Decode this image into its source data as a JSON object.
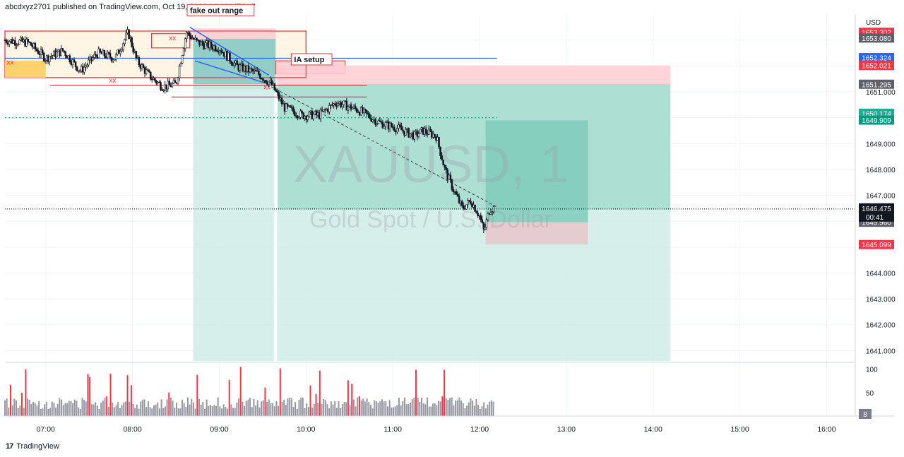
{
  "header": {
    "published": "abcdxyz2701 published on TradingView.com, Oct 19, 2022 12:10 UTC+7"
  },
  "footer": {
    "logo": "17",
    "brand": "TradingView"
  },
  "watermark": {
    "symbol": "XAUUSD, 1",
    "name": "Gold Spot / U.S. Dollar"
  },
  "chart_data": {
    "type": "candlestick",
    "symbol": "XAUUSD",
    "interval": "1",
    "currency": "USD",
    "ylim": [
      1640.6,
      1653.95
    ],
    "price_ticks": [
      "1651.000",
      "1649.000",
      "1648.000",
      "1647.000",
      "1644.000",
      "1643.000",
      "1642.000",
      "1641.000"
    ],
    "time_ticks": [
      {
        "label": "07:00",
        "t": 7.0
      },
      {
        "label": "08:00",
        "t": 8.0
      },
      {
        "label": "09:00",
        "t": 9.0
      },
      {
        "label": "10:00",
        "t": 10.0
      },
      {
        "label": "11:00",
        "t": 11.0
      },
      {
        "label": "12:00",
        "t": 12.0
      },
      {
        "label": "13:00",
        "t": 13.0
      },
      {
        "label": "14:00",
        "t": 14.0
      },
      {
        "label": "15:00",
        "t": 15.0
      },
      {
        "label": "16:00",
        "t": 16.0
      }
    ],
    "xlim": [
      6.53,
      16.33
    ],
    "price_labels": [
      {
        "value": 1653.302,
        "text": "1653.302",
        "bg": "#f23645",
        "fg": "#ffffff"
      },
      {
        "value": 1653.08,
        "text": "1653.080",
        "bg": "#5d606b",
        "fg": "#ffffff"
      },
      {
        "value": 1652.324,
        "text": "1652.324",
        "bg": "#2962ff",
        "fg": "#ffffff"
      },
      {
        "value": 1652.021,
        "text": "1652.021",
        "bg": "#f23645",
        "fg": "#ffffff"
      },
      {
        "value": 1651.295,
        "text": "1651.295",
        "bg": "#5d606b",
        "fg": "#ffffff"
      },
      {
        "value": 1650.174,
        "text": "1650.174",
        "bg": "#22ab94",
        "fg": "#ffffff"
      },
      {
        "value": 1649.909,
        "text": "1649.909",
        "bg": "#089981",
        "fg": "#ffffff"
      },
      {
        "value": 1645.96,
        "text": "1645.960",
        "bg": "#5d606b",
        "fg": "#ffffff"
      },
      {
        "value": 1645.099,
        "text": "1645.099",
        "bg": "#f23645",
        "fg": "#ffffff"
      }
    ],
    "last_price": {
      "value": 1646.475,
      "text": "1646.475",
      "countdown": "00:41"
    },
    "volume_ticks": [
      "100",
      "50"
    ],
    "volume_max": 110,
    "current_volume": "8",
    "annotations": [
      {
        "text": "fake out range",
        "t": 8.63,
        "price": 1654.05
      },
      {
        "text": "IA setup",
        "t": 9.83,
        "price": 1652.15
      },
      {
        "text": "xx",
        "t": 8.42,
        "price": 1653.0
      },
      {
        "text": "xx",
        "t": 7.73,
        "price": 1651.35
      },
      {
        "text": "xx",
        "t": 6.55,
        "price": 1652.05
      },
      {
        "text": "xx",
        "t": 9.51,
        "price": 1651.1
      }
    ],
    "zones": [
      {
        "t0": 6.53,
        "t1": 10.0,
        "p0": 1651.55,
        "p1": 1653.35,
        "fill": "#fff3e0",
        "stroke": "#ef5350"
      },
      {
        "t0": 8.7,
        "t1": 9.65,
        "p0": 1651.1,
        "p1": 1653.45,
        "fill": "#ffcdd2",
        "stroke": ""
      },
      {
        "t0": 8.7,
        "t1": 9.65,
        "p0": 1651.1,
        "p1": 1653.05,
        "fill": "#80cbc4",
        "stroke": ""
      },
      {
        "t0": 9.65,
        "t1": 10.45,
        "p0": 1651.7,
        "p1": 1652.2,
        "fill": "#ffcdd2",
        "stroke": "#ef5350"
      },
      {
        "t0": 9.66,
        "t1": 14.2,
        "p0": 1651.3,
        "p1": 1652.02,
        "fill": "#ffcdd2",
        "stroke": ""
      },
      {
        "t0": 8.7,
        "t1": 14.2,
        "p0": 1640.6,
        "p1": 1651.3,
        "fill": "#d0ece6",
        "stroke": ""
      },
      {
        "t0": 9.68,
        "t1": 14.2,
        "p0": 1646.45,
        "p1": 1651.3,
        "fill": "#a6dccf",
        "stroke": ""
      },
      {
        "t0": 12.07,
        "t1": 13.25,
        "p0": 1645.96,
        "p1": 1649.9,
        "fill": "#7fcdbb",
        "stroke": ""
      },
      {
        "t0": 12.07,
        "t1": 13.25,
        "p0": 1645.1,
        "p1": 1645.96,
        "fill": "#e8c6c9",
        "stroke": ""
      }
    ],
    "rectangles": [
      {
        "t0": 6.53,
        "t1": 10.0,
        "p0": 1651.55,
        "p1": 1653.35,
        "stroke": "#f23645"
      },
      {
        "t0": 6.53,
        "t1": 7.0,
        "p0": 1651.55,
        "p1": 1652.2,
        "stroke": "",
        "fill": "#ffd26e"
      },
      {
        "t0": 8.22,
        "t1": 8.66,
        "p0": 1652.7,
        "p1": 1653.25,
        "stroke": "#f23645",
        "fill": ""
      }
    ],
    "lines": [
      {
        "t0": 6.53,
        "t1": 12.2,
        "p0": 1652.3,
        "p1": 1652.3,
        "color": "#2962ff",
        "dash": ""
      },
      {
        "t0": 6.53,
        "t1": 12.2,
        "p0": 1650.0,
        "p1": 1650.0,
        "color": "#089981",
        "dash": "2,3"
      },
      {
        "t0": 7.05,
        "t1": 10.7,
        "p0": 1651.25,
        "p1": 1651.25,
        "color": "#f23645",
        "dash": ""
      },
      {
        "t0": 8.45,
        "t1": 10.7,
        "p0": 1650.8,
        "p1": 1650.8,
        "color": "#f23645",
        "dash": ""
      },
      {
        "t0": 6.53,
        "t1": 16.33,
        "p0": 1646.475,
        "p1": 1646.475,
        "color": "#131722",
        "dash": "1,2"
      },
      {
        "t0": 9.6,
        "t1": 12.2,
        "p0": 1651.2,
        "p1": 1646.55,
        "color": "#555555",
        "dash": "4,3"
      }
    ],
    "wedge": [
      {
        "t0": 8.66,
        "t1": 9.57,
        "p0": 1653.5,
        "p1": 1651.65,
        "color": "#2962ff"
      },
      {
        "t0": 8.72,
        "t1": 9.57,
        "p0": 1652.2,
        "p1": 1651.3,
        "color": "#2962ff"
      }
    ],
    "vertical_white": {
      "t": 9.65
    }
  }
}
